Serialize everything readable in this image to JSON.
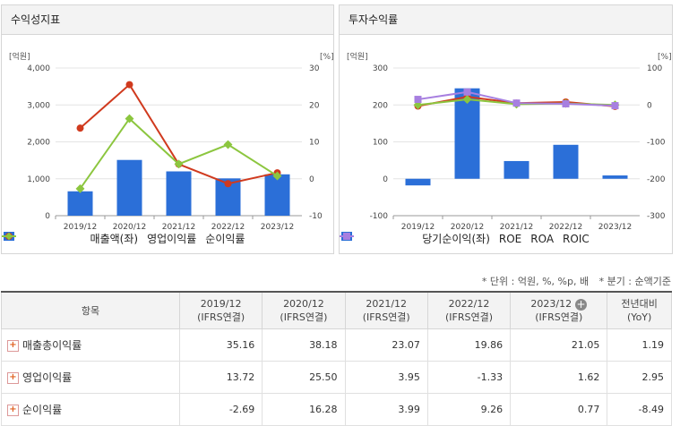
{
  "left_panel": {
    "title": "수익성지표",
    "left_unit": "[억원]",
    "right_unit": "[%]",
    "legend": [
      {
        "label": "매출액(좌)",
        "color": "#2b6fd8",
        "icon": "square-icon"
      },
      {
        "label": "영업이익률",
        "color": "#d03a1e",
        "icon": "circle-line-icon"
      },
      {
        "label": "순이익률",
        "color": "#8cc63f",
        "icon": "diamond-line-icon"
      }
    ]
  },
  "right_panel": {
    "title": "투자수익률",
    "left_unit": "[억원]",
    "right_unit": "[%]",
    "legend": [
      {
        "label": "당기순이익(좌)",
        "color": "#2b6fd8",
        "icon": "square-icon"
      },
      {
        "label": "ROE",
        "color": "#d03a1e",
        "icon": "circle-line-icon"
      },
      {
        "label": "ROA",
        "color": "#8cc63f",
        "icon": "diamond-line-icon"
      },
      {
        "label": "ROIC",
        "color": "#a77fe0",
        "icon": "square-line-icon"
      }
    ]
  },
  "chart_data": [
    {
      "type": "bar",
      "title": "수익성지표",
      "categories": [
        "2019/12",
        "2020/12",
        "2021/12",
        "2022/12",
        "2023/12"
      ],
      "y_left_ticks": [
        "4,000",
        "3,000",
        "2,000",
        "1,000",
        "0"
      ],
      "y_right_ticks": [
        "30",
        "20",
        "10",
        "0",
        "-10"
      ],
      "ylim_left": [
        0,
        4000
      ],
      "ylim_right": [
        -10,
        30
      ],
      "bars": {
        "name": "매출액(좌)",
        "values": [
          660,
          1510,
          1200,
          1010,
          1120
        ]
      },
      "lines": [
        {
          "name": "영업이익률",
          "values": [
            13.72,
            25.5,
            3.95,
            -1.33,
            1.62
          ]
        },
        {
          "name": "순이익률",
          "values": [
            -2.69,
            16.28,
            3.99,
            9.26,
            0.77
          ]
        }
      ]
    },
    {
      "type": "bar",
      "title": "투자수익률",
      "categories": [
        "2019/12",
        "2020/12",
        "2021/12",
        "2022/12",
        "2023/12"
      ],
      "y_left_ticks": [
        "300",
        "200",
        "100",
        "0",
        "-100"
      ],
      "y_right_ticks": [
        "100",
        "0",
        "-100",
        "-200",
        "-300"
      ],
      "ylim_left": [
        -100,
        300
      ],
      "ylim_right": [
        -300,
        100
      ],
      "bars": {
        "name": "당기순이익(좌)",
        "values": [
          -18,
          245,
          48,
          92,
          9
        ]
      },
      "lines": [
        {
          "name": "ROE",
          "values": [
            -3,
            22,
            5,
            8,
            -4
          ]
        },
        {
          "name": "ROA",
          "values": [
            0,
            15,
            2,
            4,
            0
          ]
        },
        {
          "name": "ROIC",
          "values": [
            15,
            35,
            5,
            3,
            -2
          ]
        }
      ]
    }
  ],
  "notes": {
    "unit": "* 단위 : 억원, %, %p, 배",
    "basis": "* 분기 : 순액기준"
  },
  "table": {
    "header_first": "항목",
    "columns": [
      {
        "period": "2019/12",
        "basis": "(IFRS연결)"
      },
      {
        "period": "2020/12",
        "basis": "(IFRS연결)"
      },
      {
        "period": "2021/12",
        "basis": "(IFRS연결)"
      },
      {
        "period": "2022/12",
        "basis": "(IFRS연결)"
      },
      {
        "period": "2023/12",
        "basis": "(IFRS연결)"
      }
    ],
    "yoy_header": {
      "line1": "전년대비",
      "line2": "(YoY)"
    },
    "rows": [
      {
        "label": "매출총이익률",
        "values": [
          "35.16",
          "38.18",
          "23.07",
          "19.86",
          "21.05"
        ],
        "yoy": "1.19"
      },
      {
        "label": "영업이익률",
        "values": [
          "13.72",
          "25.50",
          "3.95",
          "-1.33",
          "1.62"
        ],
        "yoy": "2.95"
      },
      {
        "label": "순이익률",
        "values": [
          "-2.69",
          "16.28",
          "3.99",
          "9.26",
          "0.77"
        ],
        "yoy": "-8.49"
      }
    ]
  }
}
